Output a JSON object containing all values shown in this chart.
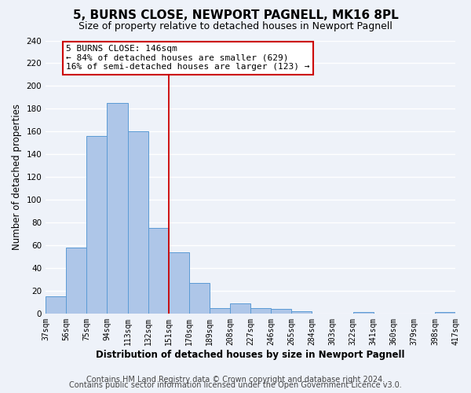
{
  "title": "5, BURNS CLOSE, NEWPORT PAGNELL, MK16 8PL",
  "subtitle": "Size of property relative to detached houses in Newport Pagnell",
  "xlabel": "Distribution of detached houses by size in Newport Pagnell",
  "ylabel": "Number of detached properties",
  "bar_edges": [
    37,
    56,
    75,
    94,
    113,
    132,
    151,
    170,
    189,
    208,
    227,
    246,
    265,
    284,
    303,
    322,
    341,
    360,
    379,
    398,
    417
  ],
  "bar_heights": [
    15,
    58,
    156,
    185,
    160,
    75,
    54,
    27,
    5,
    9,
    5,
    4,
    2,
    0,
    0,
    1,
    0,
    0,
    0,
    1
  ],
  "bar_color": "#aec6e8",
  "bar_edge_color": "#5b9bd5",
  "vline_x": 151,
  "vline_color": "#cc0000",
  "annotation_title": "5 BURNS CLOSE: 146sqm",
  "annotation_line1": "← 84% of detached houses are smaller (629)",
  "annotation_line2": "16% of semi-detached houses are larger (123) →",
  "annotation_box_color": "#ffffff",
  "annotation_box_edge_color": "#cc0000",
  "xlim_left": 37,
  "xlim_right": 417,
  "ylim_top": 240,
  "yticks": [
    0,
    20,
    40,
    60,
    80,
    100,
    120,
    140,
    160,
    180,
    200,
    220,
    240
  ],
  "tick_labels": [
    "37sqm",
    "56sqm",
    "75sqm",
    "94sqm",
    "113sqm",
    "132sqm",
    "151sqm",
    "170sqm",
    "189sqm",
    "208sqm",
    "227sqm",
    "246sqm",
    "265sqm",
    "284sqm",
    "303sqm",
    "322sqm",
    "341sqm",
    "360sqm",
    "379sqm",
    "398sqm",
    "417sqm"
  ],
  "footer_line1": "Contains HM Land Registry data © Crown copyright and database right 2024.",
  "footer_line2": "Contains public sector information licensed under the Open Government Licence v3.0.",
  "background_color": "#eef2f9",
  "plot_bg_color": "#eef2f9",
  "grid_color": "#ffffff",
  "title_fontsize": 11,
  "subtitle_fontsize": 9,
  "axis_label_fontsize": 8.5,
  "tick_fontsize": 7,
  "footer_fontsize": 7,
  "annot_fontsize": 8
}
